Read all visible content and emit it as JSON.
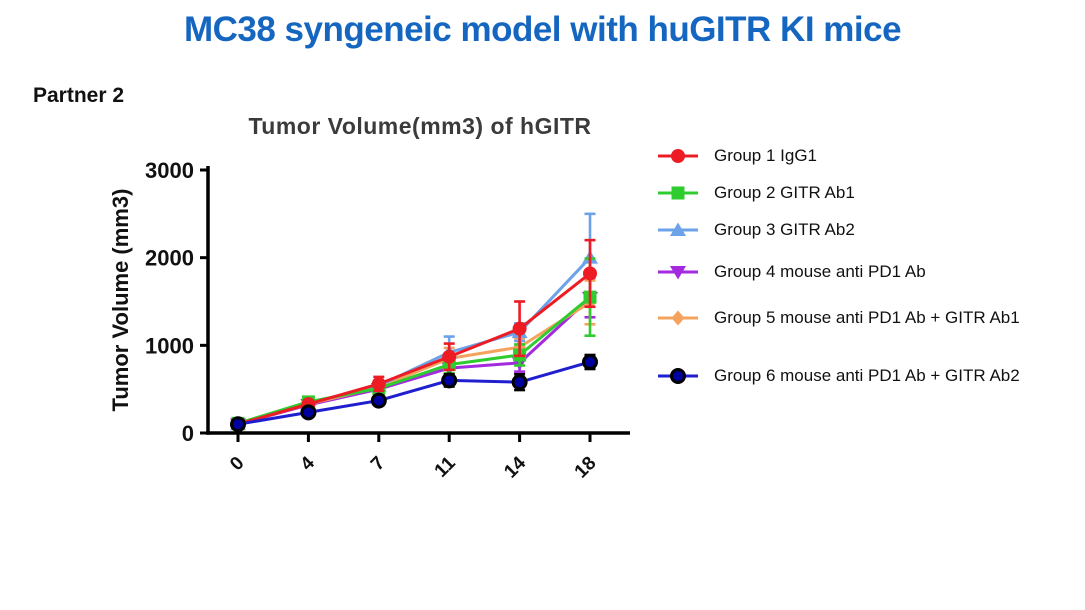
{
  "slide": {
    "title": "MC38 syngeneic model with huGITR KI mice",
    "title_color": "#1566c0",
    "partner_label": "Partner 2"
  },
  "chart_data": {
    "type": "line",
    "title": "Tumor Volume(mm3) of hGITR",
    "xlabel": "",
    "ylabel": "Tumor Volume (mm3)",
    "x": [
      0,
      4,
      7,
      11,
      14,
      18
    ],
    "x_tick_labels": [
      "0",
      "4",
      "7",
      "11",
      "14",
      "18"
    ],
    "y_ticks": [
      0,
      1000,
      2000,
      3000
    ],
    "ylim": [
      0,
      3000
    ],
    "grid": false,
    "legend_position": "right",
    "error_bars": "sd",
    "series": [
      {
        "name": "Group 1 IgG1",
        "color": "#ed1c24",
        "marker": "circle",
        "values": [
          100,
          330,
          560,
          870,
          1190,
          1820
        ],
        "errors": [
          20,
          25,
          80,
          150,
          310,
          380
        ]
      },
      {
        "name": "Group 2 GITR Ab1",
        "color": "#2fcc2f",
        "marker": "square",
        "values": [
          110,
          355,
          510,
          780,
          890,
          1550
        ],
        "errors": [
          20,
          25,
          60,
          100,
          120,
          440
        ]
      },
      {
        "name": "Group 3 GITR Ab2",
        "color": "#6ba2e8",
        "marker": "triangle-up",
        "values": [
          100,
          340,
          540,
          920,
          1150,
          2000
        ],
        "errors": [
          20,
          25,
          60,
          180,
          100,
          500
        ]
      },
      {
        "name": "Group 4 mouse anti PD1 Ab",
        "color": "#a42ae0",
        "marker": "triangle-down",
        "values": [
          100,
          320,
          500,
          740,
          800,
          1540
        ],
        "errors": [
          15,
          20,
          50,
          80,
          100,
          220
        ]
      },
      {
        "name": "Group 5 mouse anti PD1 Ab + GITR Ab1",
        "color": "#f5a35c",
        "marker": "diamond",
        "values": [
          100,
          330,
          520,
          850,
          980,
          1490
        ],
        "errors": [
          15,
          20,
          50,
          120,
          100,
          250
        ]
      },
      {
        "name": "Group 6 mouse anti PD1 Ab + GITR Ab2",
        "color": "#1f1fd0",
        "marker": "circle-outlined",
        "marker_fill": "#0000a0",
        "marker_outline": "#000000",
        "error_color": "#000000",
        "values": [
          100,
          235,
          370,
          600,
          580,
          810
        ],
        "errors": [
          15,
          40,
          40,
          70,
          90,
          80
        ]
      }
    ]
  }
}
